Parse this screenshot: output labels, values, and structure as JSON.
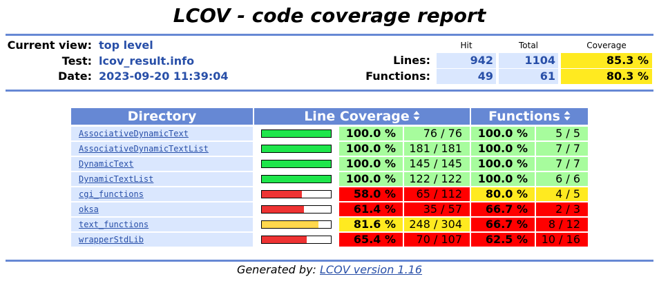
{
  "title": "LCOV - code coverage report",
  "header": {
    "current_view_label": "Current view:",
    "current_view_value": "top level",
    "test_label": "Test:",
    "test_value": "lcov_result.info",
    "date_label": "Date:",
    "date_value": "2023-09-20 11:39:04"
  },
  "summary": {
    "hit_label": "Hit",
    "total_label": "Total",
    "coverage_label": "Coverage",
    "lines_label": "Lines:",
    "lines_hit": "942",
    "lines_total": "1104",
    "lines_coverage": "85.3 %",
    "functions_label": "Functions:",
    "functions_hit": "49",
    "functions_total": "61",
    "functions_coverage": "80.3 %"
  },
  "table": {
    "directory_header": "Directory",
    "line_coverage_header": "Line Coverage",
    "functions_header": "Functions",
    "rows": [
      {
        "name": "AssociativeDynamicText",
        "line_fraction": 1.0,
        "line_pct": "100.0 %",
        "line_count": "76 / 76",
        "func_pct": "100.0 %",
        "func_count": "5 / 5",
        "line_level": "high",
        "func_level": "high"
      },
      {
        "name": "AssociativeDynamicTextList",
        "line_fraction": 1.0,
        "line_pct": "100.0 %",
        "line_count": "181 / 181",
        "func_pct": "100.0 %",
        "func_count": "7 / 7",
        "line_level": "high",
        "func_level": "high"
      },
      {
        "name": "DynamicText",
        "line_fraction": 1.0,
        "line_pct": "100.0 %",
        "line_count": "145 / 145",
        "func_pct": "100.0 %",
        "func_count": "7 / 7",
        "line_level": "high",
        "func_level": "high"
      },
      {
        "name": "DynamicTextList",
        "line_fraction": 1.0,
        "line_pct": "100.0 %",
        "line_count": "122 / 122",
        "func_pct": "100.0 %",
        "func_count": "6 / 6",
        "line_level": "high",
        "func_level": "high"
      },
      {
        "name": "cgi_functions",
        "line_fraction": 0.58,
        "line_pct": "58.0 %",
        "line_count": "65 / 112",
        "func_pct": "80.0 %",
        "func_count": "4 / 5",
        "line_level": "low",
        "func_level": "med"
      },
      {
        "name": "oksa",
        "line_fraction": 0.614,
        "line_pct": "61.4 %",
        "line_count": "35 / 57",
        "func_pct": "66.7 %",
        "func_count": "2 / 3",
        "line_level": "low",
        "func_level": "low"
      },
      {
        "name": "text_functions",
        "line_fraction": 0.816,
        "line_pct": "81.6 %",
        "line_count": "248 / 304",
        "func_pct": "66.7 %",
        "func_count": "8 / 12",
        "line_level": "med",
        "func_level": "low"
      },
      {
        "name": "wrapperStdLib",
        "line_fraction": 0.654,
        "line_pct": "65.4 %",
        "line_count": "70 / 107",
        "func_pct": "62.5 %",
        "func_count": "10 / 16",
        "line_level": "low",
        "func_level": "low"
      }
    ]
  },
  "colors": {
    "accent": "#6688d4",
    "link": "#284fa8",
    "label_bg": "#dae7fe",
    "high": "#a7fc9d",
    "med": "#ffea20",
    "low": "#ff0000",
    "bar_high": "#1ee64b",
    "bar_med": "#ffd84d",
    "bar_low": "#ee3333"
  },
  "icons": {
    "sort": "sort-updown-icon"
  },
  "footer": {
    "generated_by": "Generated by:",
    "tool_link": "LCOV version 1.16"
  }
}
